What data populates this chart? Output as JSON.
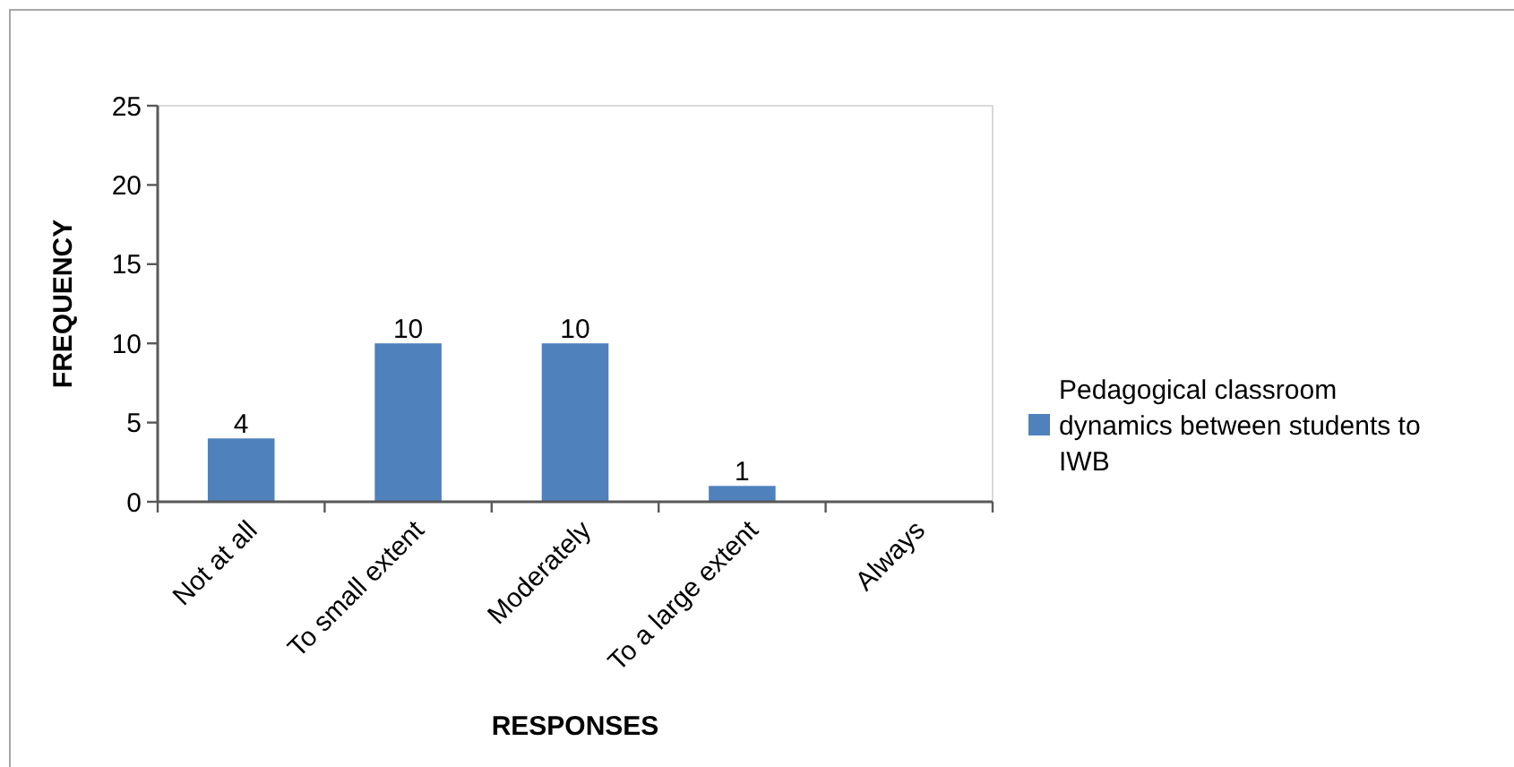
{
  "chart_data": {
    "type": "bar",
    "xlabel": "RESPONSES",
    "ylabel": "FREQUENCY",
    "categories": [
      "Not at all",
      "To small extent",
      "Moderately",
      "To a large extent",
      "Always"
    ],
    "series": [
      {
        "name": "Pedagogical classroom dynamics between students to IWB",
        "color": "#4f81bd",
        "values": [
          4,
          10,
          10,
          1,
          null
        ],
        "value_labels": [
          "4",
          "10",
          "10",
          "1",
          null
        ]
      }
    ],
    "ylim": [
      0,
      25
    ],
    "yticks": [
      0,
      5,
      10,
      15,
      20,
      25
    ],
    "grid": false,
    "legend": "right"
  }
}
